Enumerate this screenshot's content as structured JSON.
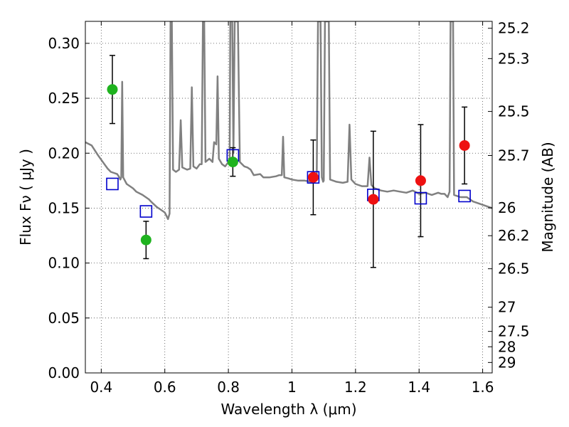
{
  "chart_data": {
    "type": "scatter",
    "title": "",
    "xlabel": "Wavelength  λ (μm)",
    "ylabel": "Flux  Fν  ( μJy )",
    "ylabel_right": "Magnitude (AB)",
    "xlim": [
      0.35,
      1.63
    ],
    "ylim": [
      0.0,
      0.32
    ],
    "grid": true,
    "x_ticks": [
      0.4,
      0.6,
      0.8,
      1.0,
      1.2,
      1.4,
      1.6
    ],
    "x_tick_labels": [
      "0.4",
      "0.6",
      "0.8",
      "1",
      "1.2",
      "1.4",
      "1.6"
    ],
    "y_ticks": [
      0.0,
      0.05,
      0.1,
      0.15,
      0.2,
      0.25,
      0.3
    ],
    "y_tick_labels": [
      "0.00",
      "0.05",
      "0.10",
      "0.15",
      "0.20",
      "0.25",
      "0.30"
    ],
    "right_ticks": [
      {
        "label": "25.2",
        "flux": 0.3137
      },
      {
        "label": "25.3",
        "flux": 0.2861
      },
      {
        "label": "25.5",
        "flux": 0.238
      },
      {
        "label": "25.7",
        "flux": 0.1979
      },
      {
        "label": "26",
        "flux": 0.1502
      },
      {
        "label": "26.2",
        "flux": 0.1249
      },
      {
        "label": "26.5",
        "flux": 0.0948
      },
      {
        "label": "27",
        "flux": 0.0598
      },
      {
        "label": "27.5",
        "flux": 0.0378
      },
      {
        "label": "28",
        "flux": 0.0238
      },
      {
        "label": "29",
        "flux": 0.0095
      }
    ],
    "series": [
      {
        "kind": "line",
        "color": "#808080",
        "points": [
          [
            0.35,
            0.21
          ],
          [
            0.37,
            0.207
          ],
          [
            0.39,
            0.198
          ],
          [
            0.41,
            0.19
          ],
          [
            0.42,
            0.186
          ],
          [
            0.43,
            0.183
          ],
          [
            0.44,
            0.182
          ],
          [
            0.45,
            0.181
          ],
          [
            0.455,
            0.179
          ],
          [
            0.46,
            0.176
          ],
          [
            0.463,
            0.178
          ],
          [
            0.466,
            0.265
          ],
          [
            0.469,
            0.178
          ],
          [
            0.48,
            0.172
          ],
          [
            0.5,
            0.168
          ],
          [
            0.51,
            0.165
          ],
          [
            0.53,
            0.162
          ],
          [
            0.55,
            0.158
          ],
          [
            0.56,
            0.155
          ],
          [
            0.575,
            0.151
          ],
          [
            0.59,
            0.148
          ],
          [
            0.6,
            0.146
          ],
          [
            0.605,
            0.143
          ],
          [
            0.61,
            0.14
          ],
          [
            0.615,
            0.145
          ],
          [
            0.618,
            0.32
          ],
          [
            0.622,
            0.32
          ],
          [
            0.626,
            0.185
          ],
          [
            0.635,
            0.183
          ],
          [
            0.645,
            0.185
          ],
          [
            0.65,
            0.23
          ],
          [
            0.655,
            0.187
          ],
          [
            0.67,
            0.185
          ],
          [
            0.68,
            0.186
          ],
          [
            0.685,
            0.26
          ],
          [
            0.69,
            0.188
          ],
          [
            0.7,
            0.186
          ],
          [
            0.71,
            0.19
          ],
          [
            0.716,
            0.19
          ],
          [
            0.72,
            0.32
          ],
          [
            0.724,
            0.32
          ],
          [
            0.728,
            0.192
          ],
          [
            0.74,
            0.195
          ],
          [
            0.75,
            0.192
          ],
          [
            0.755,
            0.21
          ],
          [
            0.762,
            0.208
          ],
          [
            0.766,
            0.27
          ],
          [
            0.77,
            0.195
          ],
          [
            0.78,
            0.19
          ],
          [
            0.79,
            0.188
          ],
          [
            0.8,
            0.192
          ],
          [
            0.804,
            0.195
          ],
          [
            0.806,
            0.32
          ],
          [
            0.812,
            0.32
          ],
          [
            0.816,
            0.2
          ],
          [
            0.82,
            0.32
          ],
          [
            0.83,
            0.32
          ],
          [
            0.836,
            0.192
          ],
          [
            0.85,
            0.188
          ],
          [
            0.86,
            0.187
          ],
          [
            0.87,
            0.185
          ],
          [
            0.88,
            0.18
          ],
          [
            0.9,
            0.181
          ],
          [
            0.91,
            0.178
          ],
          [
            0.93,
            0.178
          ],
          [
            0.95,
            0.179
          ],
          [
            0.96,
            0.18
          ],
          [
            0.968,
            0.18
          ],
          [
            0.972,
            0.215
          ],
          [
            0.976,
            0.178
          ],
          [
            0.99,
            0.177
          ],
          [
            1.0,
            0.176
          ],
          [
            1.02,
            0.175
          ],
          [
            1.04,
            0.175
          ],
          [
            1.06,
            0.174
          ],
          [
            1.066,
            0.173
          ],
          [
            1.072,
            0.174
          ],
          [
            1.078,
            0.178
          ],
          [
            1.082,
            0.32
          ],
          [
            1.09,
            0.32
          ],
          [
            1.094,
            0.178
          ],
          [
            1.098,
            0.174
          ],
          [
            1.1,
            0.175
          ],
          [
            1.104,
            0.32
          ],
          [
            1.116,
            0.32
          ],
          [
            1.12,
            0.176
          ],
          [
            1.14,
            0.174
          ],
          [
            1.16,
            0.173
          ],
          [
            1.175,
            0.174
          ],
          [
            1.181,
            0.226
          ],
          [
            1.187,
            0.176
          ],
          [
            1.2,
            0.172
          ],
          [
            1.22,
            0.17
          ],
          [
            1.238,
            0.17
          ],
          [
            1.244,
            0.196
          ],
          [
            1.25,
            0.171
          ],
          [
            1.26,
            0.168
          ],
          [
            1.28,
            0.166
          ],
          [
            1.3,
            0.165
          ],
          [
            1.32,
            0.166
          ],
          [
            1.34,
            0.165
          ],
          [
            1.36,
            0.164
          ],
          [
            1.38,
            0.166
          ],
          [
            1.4,
            0.163
          ],
          [
            1.42,
            0.164
          ],
          [
            1.44,
            0.162
          ],
          [
            1.46,
            0.164
          ],
          [
            1.47,
            0.163
          ],
          [
            1.48,
            0.163
          ],
          [
            1.49,
            0.16
          ],
          [
            1.496,
            0.165
          ],
          [
            1.499,
            0.32
          ],
          [
            1.507,
            0.32
          ],
          [
            1.51,
            0.162
          ],
          [
            1.53,
            0.16
          ],
          [
            1.55,
            0.16
          ],
          [
            1.56,
            0.158
          ],
          [
            1.57,
            0.156
          ],
          [
            1.58,
            0.155
          ],
          [
            1.6,
            0.153
          ],
          [
            1.63,
            0.15
          ]
        ]
      },
      {
        "kind": "points",
        "marker": "circle",
        "color": "#1fb31f",
        "x": [
          0.435,
          0.541,
          0.814
        ],
        "y": [
          0.258,
          0.121,
          0.192
        ],
        "err": [
          0.031,
          0.017,
          0.013
        ]
      },
      {
        "kind": "points",
        "marker": "circle",
        "color": "#ee1111",
        "x": [
          1.067,
          1.256,
          1.405,
          1.543
        ],
        "y": [
          0.178,
          0.158,
          0.175,
          0.207
        ],
        "err": [
          0.034,
          0.062,
          0.051,
          0.035
        ]
      },
      {
        "kind": "points",
        "marker": "open-square",
        "color": "#0000cc",
        "x": [
          0.435,
          0.541,
          0.814,
          1.067,
          1.256,
          1.405,
          1.543
        ],
        "y": [
          0.172,
          0.147,
          0.198,
          0.178,
          0.162,
          0.159,
          0.161
        ]
      }
    ]
  }
}
